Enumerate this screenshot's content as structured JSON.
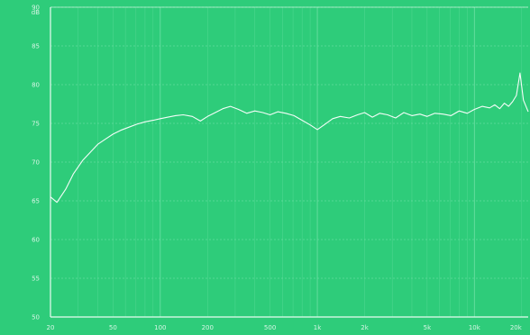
{
  "chart_data": {
    "type": "line",
    "title": "",
    "xlabel": "",
    "ylabel": "",
    "x_scale": "log",
    "grid": true,
    "colors": {
      "background": "#2ecc7a",
      "line": "#ffffff",
      "grid": "#6fe0a6",
      "frame": "#e8fbf1",
      "text": "#d8f5e6"
    },
    "y_unit_label": "dB",
    "y_ticks": [
      "90",
      "85",
      "80",
      "75",
      "70",
      "65",
      "60",
      "55",
      "50"
    ],
    "x_ticks": [
      "20",
      "50",
      "100",
      "200",
      "500",
      "1k",
      "2k",
      "5k",
      "10k",
      "20k"
    ],
    "ylim": [
      50,
      90
    ],
    "xlim": [
      20,
      22000
    ],
    "series": [
      {
        "x": [
          20,
          22,
          25,
          28,
          32,
          36,
          40,
          45,
          50,
          56,
          63,
          71,
          80,
          90,
          100,
          112,
          125,
          140,
          160,
          180,
          200,
          224,
          250,
          280,
          315,
          355,
          400,
          450,
          500,
          560,
          630,
          710,
          800,
          900,
          1000,
          1120,
          1250,
          1400,
          1600,
          1800,
          2000,
          2240,
          2500,
          2800,
          3150,
          3550,
          4000,
          4500,
          5000,
          5600,
          6300,
          7100,
          8000,
          9000,
          10000,
          11200,
          12500,
          13500,
          14500,
          15500,
          16500,
          17500,
          18500,
          19500,
          20500,
          22000
        ],
        "y": [
          65.5,
          64.8,
          66.5,
          68.5,
          70.2,
          71.3,
          72.3,
          73.0,
          73.6,
          74.1,
          74.5,
          74.9,
          75.2,
          75.4,
          75.6,
          75.8,
          76.0,
          76.1,
          75.9,
          75.3,
          75.9,
          76.4,
          76.9,
          77.2,
          76.8,
          76.3,
          76.6,
          76.4,
          76.1,
          76.5,
          76.3,
          76.0,
          75.4,
          74.8,
          74.2,
          74.9,
          75.6,
          75.9,
          75.7,
          76.1,
          76.4,
          75.8,
          76.3,
          76.1,
          75.7,
          76.4,
          76.0,
          76.2,
          75.9,
          76.3,
          76.2,
          76.0,
          76.6,
          76.3,
          76.8,
          77.2,
          77.0,
          77.4,
          76.9,
          77.6,
          77.2,
          77.8,
          78.6,
          81.5,
          78.0,
          76.5
        ]
      }
    ]
  }
}
